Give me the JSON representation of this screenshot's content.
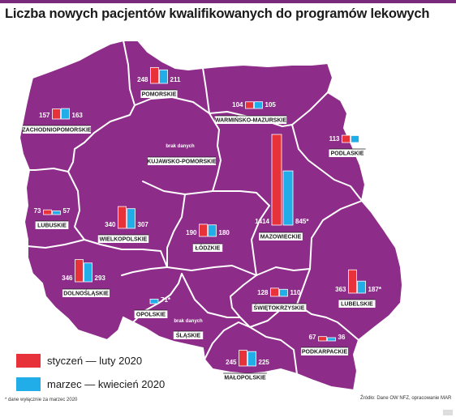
{
  "title": "Liczba nowych pacjentów kwalifikowanych do programów lekowych",
  "colors": {
    "map": "#8e2c8a",
    "border": "#ffffff",
    "series1": "#e8323a",
    "series2": "#21aee8",
    "label_bg": "#ffffff"
  },
  "legend": [
    {
      "label": "styczeń — luty 2020",
      "color": "#e8323a"
    },
    {
      "label": "marzec — kwiecień 2020",
      "color": "#21aee8"
    }
  ],
  "footnote": "* dane wyłącznie za marzec 2020",
  "source": "Źródło: Dane OW NFZ, opracowanie MAR",
  "chart_data": {
    "type": "bar",
    "series": [
      {
        "name": "styczeń — luty 2020"
      },
      {
        "name": "marzec — kwiecień 2020"
      }
    ],
    "no_data_label": "brak danych",
    "regions": [
      {
        "id": "pomorskie",
        "name": "POMORSKIE",
        "v1": 248,
        "v2": 211,
        "l1": "248",
        "l2": "211"
      },
      {
        "id": "zachodniopomorskie",
        "name": "ZACHODNIOPOMORSKIE",
        "v1": 157,
        "v2": 163,
        "l1": "157",
        "l2": "163"
      },
      {
        "id": "warminsko-mazurskie",
        "name": "WARMIŃSKO-MAZURSKIE",
        "v1": 104,
        "v2": 105,
        "l1": "104",
        "l2": "105"
      },
      {
        "id": "podlaskie",
        "name": "PODLASKIE",
        "v1": 113,
        "v2": 108,
        "l1": "113",
        "l2": "108"
      },
      {
        "id": "kujawsko-pomorskie",
        "name": "KUJAWSKO-POMORSKIE",
        "v1": null,
        "v2": null,
        "l1": "",
        "l2": ""
      },
      {
        "id": "lubuskie",
        "name": "LUBUSKIE",
        "v1": 73,
        "v2": 57,
        "l1": "73",
        "l2": "57"
      },
      {
        "id": "wielkopolskie",
        "name": "WIELKOPOLSKIE",
        "v1": 340,
        "v2": 307,
        "l1": "340",
        "l2": "307"
      },
      {
        "id": "mazowieckie",
        "name": "MAZOWIECKIE",
        "v1": 1414,
        "v2": 845,
        "l1": "1414",
        "l2": "845*"
      },
      {
        "id": "lodzkie",
        "name": "ŁÓDZKIE",
        "v1": 190,
        "v2": 180,
        "l1": "190",
        "l2": "180"
      },
      {
        "id": "dolnoslaskie",
        "name": "DOLNOŚLĄSKIE",
        "v1": 346,
        "v2": 293,
        "l1": "346",
        "l2": "293"
      },
      {
        "id": "lubelskie",
        "name": "LUBELSKIE",
        "v1": 363,
        "v2": 187,
        "l1": "363",
        "l2": "187*"
      },
      {
        "id": "swietokrzyskie",
        "name": "ŚWIĘTOKRZYSKIE",
        "v1": 128,
        "v2": 110,
        "l1": "128",
        "l2": "110"
      },
      {
        "id": "opolskie",
        "name": "OPOLSKIE",
        "v1": null,
        "v2": 71,
        "l1": "",
        "l2": "71*"
      },
      {
        "id": "slaskie",
        "name": "ŚLĄSKIE",
        "v1": null,
        "v2": null,
        "l1": "",
        "l2": ""
      },
      {
        "id": "podkarpackie",
        "name": "PODKARPACKIE",
        "v1": 67,
        "v2": 36,
        "l1": "67",
        "l2": "36"
      },
      {
        "id": "malopolskie",
        "name": "MAŁOPOLSKIE",
        "v1": 245,
        "v2": 225,
        "l1": "245",
        "l2": "225"
      }
    ]
  }
}
